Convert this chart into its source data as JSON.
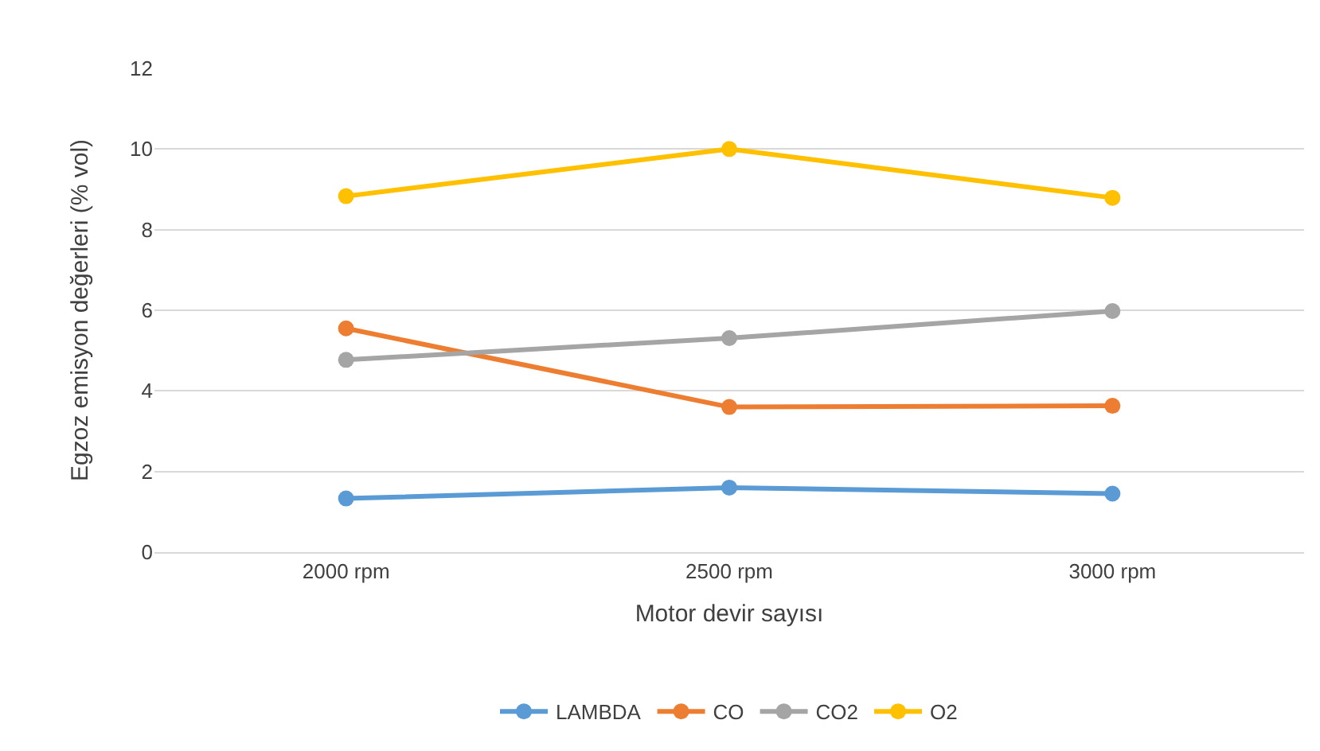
{
  "chart_data": {
    "type": "line",
    "xlabel": "Motor devir sayısı",
    "ylabel": "Egzoz emisyon değerleri (% vol)",
    "categories": [
      "2000 rpm",
      "2500 rpm",
      "3000 rpm"
    ],
    "series": [
      {
        "name": "LAMBDA",
        "color": "#5b9bd5",
        "values": [
          1.33,
          1.6,
          1.45
        ]
      },
      {
        "name": "CO",
        "color": "#ed7d31",
        "values": [
          5.55,
          3.6,
          3.63
        ]
      },
      {
        "name": "CO2",
        "color": "#a5a5a5",
        "values": [
          4.77,
          5.31,
          5.98
        ]
      },
      {
        "name": "O2",
        "color": "#ffc000",
        "values": [
          8.83,
          10.0,
          8.79
        ]
      }
    ],
    "ylim": [
      0,
      12
    ],
    "yticks": [
      0,
      2,
      4,
      6,
      8,
      10,
      12
    ],
    "grid": "y",
    "legend": "bottom",
    "marker": "circle",
    "line_style": "solid"
  }
}
